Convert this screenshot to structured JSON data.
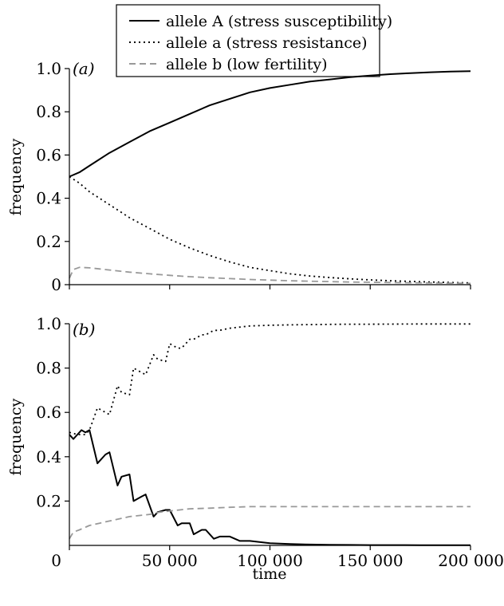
{
  "chart_data": [
    {
      "type": "line",
      "panel_label": "(a)",
      "ylabel": "frequency",
      "xlim": [
        0,
        200000
      ],
      "ylim": [
        0,
        1.0
      ],
      "yticks": [
        0,
        0.2,
        0.4,
        0.6,
        0.8,
        1.0
      ],
      "ytick_labels": [
        "0",
        "0.2",
        "0.4",
        "0.6",
        "0.8",
        "1.0"
      ],
      "grid": false,
      "series": [
        {
          "name": "allele A (stress susceptibility)",
          "x": [
            0,
            5000,
            10000,
            20000,
            30000,
            40000,
            50000,
            60000,
            70000,
            80000,
            90000,
            100000,
            110000,
            120000,
            130000,
            140000,
            150000,
            160000,
            170000,
            180000,
            190000,
            200000
          ],
          "y": [
            0.5,
            0.52,
            0.55,
            0.61,
            0.66,
            0.71,
            0.75,
            0.79,
            0.83,
            0.86,
            0.89,
            0.91,
            0.925,
            0.94,
            0.95,
            0.96,
            0.968,
            0.974,
            0.979,
            0.983,
            0.986,
            0.988
          ]
        },
        {
          "name": "allele a (stress resistance)",
          "x": [
            0,
            5000,
            10000,
            20000,
            30000,
            40000,
            50000,
            60000,
            70000,
            80000,
            90000,
            100000,
            110000,
            120000,
            130000,
            140000,
            150000,
            160000,
            170000,
            180000,
            190000,
            200000
          ],
          "y": [
            0.5,
            0.47,
            0.43,
            0.37,
            0.31,
            0.26,
            0.21,
            0.17,
            0.135,
            0.105,
            0.08,
            0.065,
            0.05,
            0.04,
            0.033,
            0.027,
            0.022,
            0.018,
            0.015,
            0.012,
            0.01,
            0.008
          ]
        },
        {
          "name": "allele b (low fertility)",
          "x": [
            0,
            2000,
            5000,
            10000,
            20000,
            30000,
            40000,
            50000,
            60000,
            70000,
            80000,
            90000,
            100000,
            110000,
            120000,
            130000,
            140000,
            150000,
            160000,
            170000,
            180000,
            190000,
            200000
          ],
          "y": [
            0.03,
            0.07,
            0.08,
            0.078,
            0.068,
            0.058,
            0.05,
            0.043,
            0.037,
            0.032,
            0.028,
            0.024,
            0.021,
            0.018,
            0.016,
            0.014,
            0.012,
            0.011,
            0.01,
            0.009,
            0.008,
            0.007,
            0.006
          ]
        }
      ]
    },
    {
      "type": "line",
      "panel_label": "(b)",
      "ylabel": "frequency",
      "xlabel": "time",
      "xlim": [
        0,
        200000
      ],
      "ylim": [
        0,
        1.0
      ],
      "yticks": [
        0.2,
        0.4,
        0.6,
        0.8,
        1.0
      ],
      "ytick_labels": [
        "0.2",
        "0.4",
        "0.6",
        "0.8",
        "1.0"
      ],
      "xticks": [
        0,
        50000,
        100000,
        150000,
        200000
      ],
      "xtick_labels": [
        "0",
        "50 000",
        "100 000",
        "150 000",
        "200 000"
      ],
      "grid": false,
      "series": [
        {
          "name": "allele A (stress susceptibility)",
          "x": [
            0,
            2000,
            4000,
            6000,
            8000,
            10000,
            14000,
            18000,
            20000,
            24000,
            26000,
            30000,
            32000,
            36000,
            38000,
            42000,
            44000,
            48000,
            50000,
            54000,
            56000,
            60000,
            62000,
            66000,
            68000,
            72000,
            75000,
            80000,
            85000,
            90000,
            100000,
            110000,
            120000,
            130000,
            140000,
            150000,
            175000,
            200000
          ],
          "y": [
            0.5,
            0.48,
            0.5,
            0.52,
            0.51,
            0.52,
            0.37,
            0.41,
            0.42,
            0.27,
            0.31,
            0.32,
            0.2,
            0.22,
            0.23,
            0.13,
            0.15,
            0.16,
            0.16,
            0.09,
            0.1,
            0.1,
            0.05,
            0.07,
            0.07,
            0.03,
            0.04,
            0.04,
            0.02,
            0.02,
            0.01,
            0.006,
            0.004,
            0.003,
            0.002,
            0.0015,
            0.001,
            0.001
          ]
        },
        {
          "name": "allele a (stress resistance)",
          "x": [
            0,
            4000,
            8000,
            10000,
            14000,
            18000,
            20000,
            24000,
            26000,
            30000,
            32000,
            36000,
            38000,
            42000,
            44000,
            48000,
            50000,
            54000,
            56000,
            60000,
            62000,
            66000,
            68000,
            72000,
            75000,
            80000,
            90000,
            100000,
            110000,
            120000,
            130000,
            140000,
            150000,
            175000,
            200000
          ],
          "y": [
            0.51,
            0.5,
            0.5,
            0.52,
            0.62,
            0.6,
            0.59,
            0.72,
            0.69,
            0.68,
            0.8,
            0.78,
            0.77,
            0.86,
            0.84,
            0.83,
            0.91,
            0.89,
            0.89,
            0.93,
            0.93,
            0.95,
            0.95,
            0.97,
            0.97,
            0.98,
            0.99,
            0.993,
            0.995,
            0.996,
            0.997,
            0.998,
            0.998,
            0.999,
            0.999
          ]
        },
        {
          "name": "allele b (low fertility)",
          "x": [
            0,
            2000,
            5000,
            10000,
            15000,
            20000,
            25000,
            30000,
            35000,
            40000,
            45000,
            50000,
            55000,
            60000,
            70000,
            80000,
            90000,
            100000,
            120000,
            150000,
            175000,
            200000
          ],
          "y": [
            0.03,
            0.06,
            0.07,
            0.09,
            0.1,
            0.11,
            0.12,
            0.13,
            0.135,
            0.14,
            0.15,
            0.155,
            0.16,
            0.165,
            0.168,
            0.172,
            0.175,
            0.175,
            0.175,
            0.175,
            0.175,
            0.175
          ]
        }
      ]
    }
  ],
  "legend": {
    "placement": "top-center",
    "items": [
      {
        "label": "allele A (stress susceptibility)",
        "style": "solid",
        "color": "#000000"
      },
      {
        "label": "allele a (stress resistance)",
        "style": "dotted",
        "color": "#000000"
      },
      {
        "label": "allele b (low fertility)",
        "style": "dashed",
        "color": "#999999"
      }
    ]
  },
  "styles": {
    "allele A (stress susceptibility)": {
      "color": "#000000",
      "dash": "solid"
    },
    "allele a (stress resistance)": {
      "color": "#000000",
      "dash": "dotted"
    },
    "allele b (low fertility)": {
      "color": "#999999",
      "dash": "dashed"
    }
  }
}
